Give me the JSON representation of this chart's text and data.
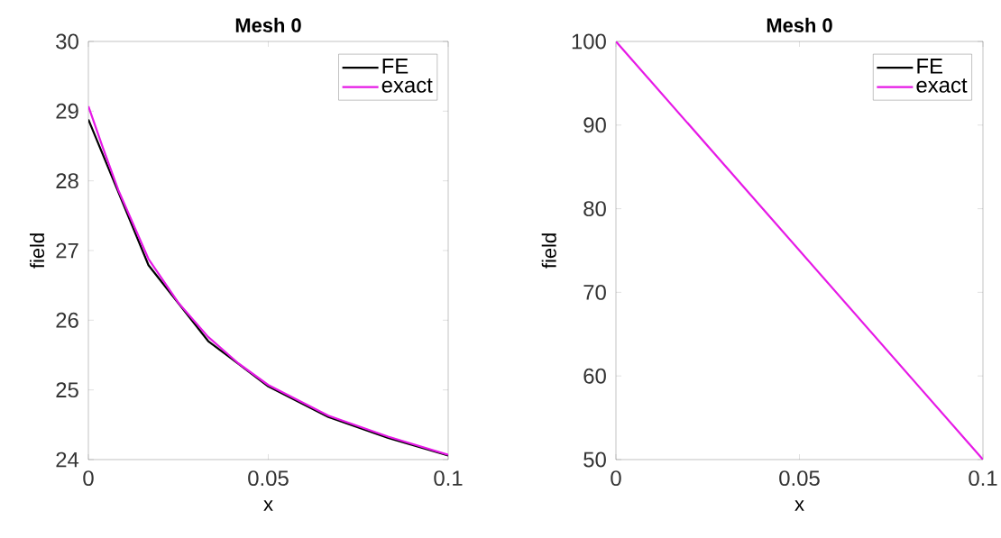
{
  "chart_data": [
    {
      "type": "line",
      "title": "Mesh 0",
      "xlabel": "x",
      "ylabel": "field",
      "xlim": [
        0,
        0.1
      ],
      "ylim": [
        24,
        30
      ],
      "xticks": [
        0,
        0.05,
        0.1
      ],
      "yticks": [
        24,
        25,
        26,
        27,
        28,
        29,
        30
      ],
      "legend": "top right",
      "series": [
        {
          "name": "FE",
          "color": "#000000",
          "x": [
            0,
            0.0167,
            0.0333,
            0.05,
            0.0667,
            0.0833,
            0.1
          ],
          "values": [
            28.88,
            26.79,
            25.7,
            25.05,
            24.61,
            24.31,
            24.06
          ]
        },
        {
          "name": "exact",
          "color": "#e619e6",
          "x": [
            0,
            0.004,
            0.0083,
            0.0167,
            0.025,
            0.0333,
            0.0417,
            0.05,
            0.0667,
            0.0833,
            0.1
          ],
          "values": [
            29.07,
            28.48,
            27.87,
            26.88,
            26.25,
            25.76,
            25.38,
            25.07,
            24.63,
            24.33,
            24.07
          ]
        }
      ]
    },
    {
      "type": "line",
      "title": "Mesh 0",
      "xlabel": "x",
      "ylabel": "field",
      "xlim": [
        0,
        0.1
      ],
      "ylim": [
        50,
        100
      ],
      "xticks": [
        0,
        0.05,
        0.1
      ],
      "yticks": [
        50,
        60,
        70,
        80,
        90,
        100
      ],
      "legend": "top right",
      "series": [
        {
          "name": "FE",
          "color": "#000000",
          "values": [
            null,
            null
          ]
        },
        {
          "name": "exact",
          "color": "#e619e6",
          "x": [
            0,
            0.1
          ],
          "values": [
            100,
            50
          ]
        }
      ]
    }
  ]
}
